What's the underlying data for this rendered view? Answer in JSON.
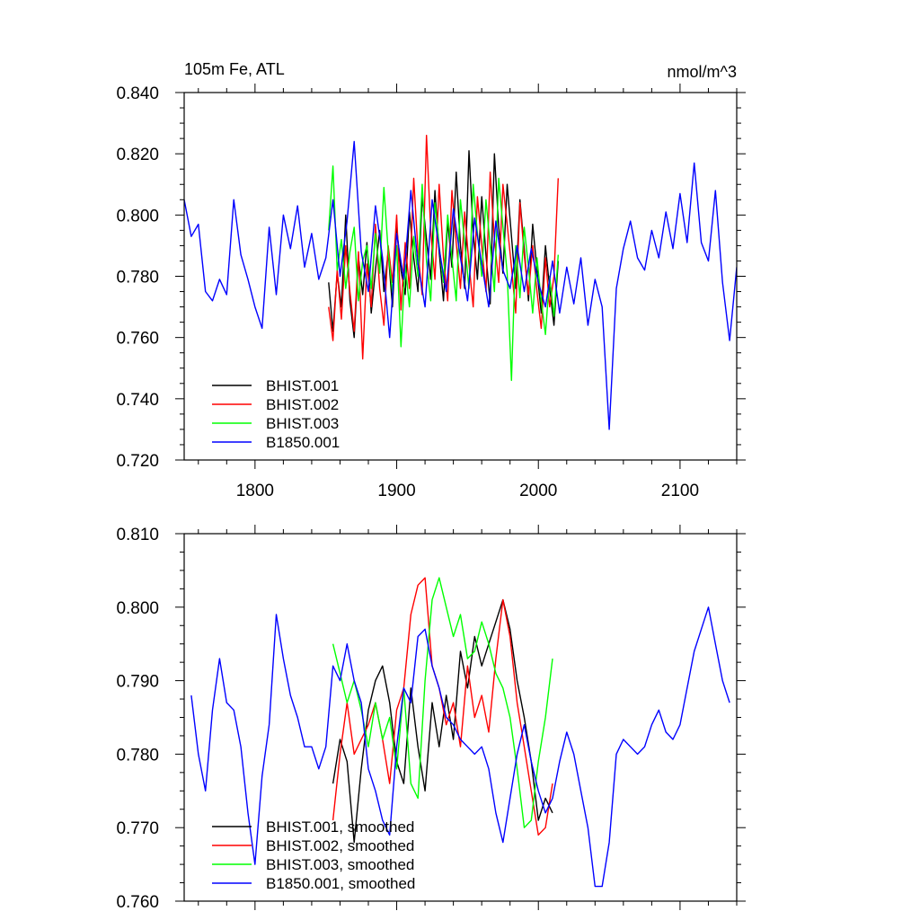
{
  "chart_data": [
    {
      "type": "line",
      "title": "105m Fe, ATL",
      "units": "nmol/m^3",
      "xlim": [
        1750,
        2140
      ],
      "ylim": [
        0.72,
        0.84
      ],
      "x_ticks": [
        1800,
        1900,
        2000,
        2100
      ],
      "y_ticks": [
        0.72,
        0.74,
        0.76,
        0.78,
        0.8,
        0.82,
        0.84
      ],
      "x_tick_labels": [
        "1800",
        "1900",
        "2000",
        "2100"
      ],
      "y_tick_labels": [
        "0.720",
        "0.740",
        "0.760",
        "0.780",
        "0.800",
        "0.820",
        "0.840"
      ],
      "legend_position": "bottom-left",
      "series": [
        {
          "name": "BHIST.001",
          "color": "#000000",
          "x": [
            1852,
            1855,
            1858,
            1861,
            1864,
            1867,
            1870,
            1873,
            1876,
            1879,
            1882,
            1885,
            1888,
            1891,
            1894,
            1897,
            1900,
            1903,
            1906,
            1909,
            1912,
            1915,
            1918,
            1921,
            1924,
            1927,
            1930,
            1933,
            1936,
            1939,
            1942,
            1945,
            1948,
            1951,
            1954,
            1957,
            1960,
            1963,
            1966,
            1969,
            1972,
            1975,
            1978,
            1981,
            1984,
            1987,
            1990,
            1993,
            1996,
            1999,
            2002,
            2005,
            2008,
            2011,
            2014
          ],
          "values": [
            0.778,
            0.762,
            0.781,
            0.77,
            0.8,
            0.772,
            0.76,
            0.786,
            0.774,
            0.791,
            0.768,
            0.782,
            0.795,
            0.775,
            0.788,
            0.77,
            0.796,
            0.782,
            0.774,
            0.801,
            0.786,
            0.775,
            0.806,
            0.792,
            0.779,
            0.808,
            0.788,
            0.772,
            0.798,
            0.783,
            0.814,
            0.79,
            0.776,
            0.821,
            0.794,
            0.779,
            0.806,
            0.787,
            0.771,
            0.82,
            0.796,
            0.781,
            0.81,
            0.793,
            0.776,
            0.805,
            0.789,
            0.772,
            0.797,
            0.782,
            0.768,
            0.79,
            0.776,
            0.764,
            0.785
          ]
        },
        {
          "name": "BHIST.002",
          "color": "#ff0000",
          "x": [
            1852,
            1855,
            1858,
            1861,
            1864,
            1867,
            1870,
            1873,
            1876,
            1879,
            1882,
            1885,
            1888,
            1891,
            1894,
            1897,
            1900,
            1903,
            1906,
            1909,
            1912,
            1915,
            1918,
            1921,
            1924,
            1927,
            1930,
            1933,
            1936,
            1939,
            1942,
            1945,
            1948,
            1951,
            1954,
            1957,
            1960,
            1963,
            1966,
            1969,
            1972,
            1975,
            1978,
            1981,
            1984,
            1987,
            1990,
            1993,
            1996,
            1999,
            2002,
            2005,
            2008,
            2011,
            2014
          ],
          "values": [
            0.77,
            0.759,
            0.782,
            0.766,
            0.79,
            0.775,
            0.762,
            0.788,
            0.753,
            0.784,
            0.77,
            0.797,
            0.776,
            0.764,
            0.79,
            0.778,
            0.8,
            0.769,
            0.791,
            0.776,
            0.812,
            0.788,
            0.774,
            0.826,
            0.795,
            0.779,
            0.81,
            0.786,
            0.772,
            0.808,
            0.791,
            0.776,
            0.801,
            0.784,
            0.77,
            0.806,
            0.79,
            0.775,
            0.814,
            0.792,
            0.778,
            0.81,
            0.797,
            0.783,
            0.768,
            0.804,
            0.787,
            0.774,
            0.79,
            0.775,
            0.763,
            0.786,
            0.77,
            0.78,
            0.812
          ]
        },
        {
          "name": "BHIST.003",
          "color": "#00ff00",
          "x": [
            1852,
            1855,
            1858,
            1861,
            1864,
            1867,
            1870,
            1873,
            1876,
            1879,
            1882,
            1885,
            1888,
            1891,
            1894,
            1897,
            1900,
            1903,
            1906,
            1909,
            1912,
            1915,
            1918,
            1921,
            1924,
            1927,
            1930,
            1933,
            1936,
            1939,
            1942,
            1945,
            1948,
            1951,
            1954,
            1957,
            1960,
            1963,
            1966,
            1969,
            1972,
            1975,
            1978,
            1981,
            1984,
            1987,
            1990,
            1993,
            1996,
            1999,
            2002,
            2005,
            2008,
            2011,
            2014
          ],
          "values": [
            0.795,
            0.816,
            0.782,
            0.792,
            0.776,
            0.788,
            0.796,
            0.772,
            0.785,
            0.79,
            0.776,
            0.794,
            0.781,
            0.809,
            0.788,
            0.775,
            0.79,
            0.757,
            0.784,
            0.77,
            0.793,
            0.78,
            0.81,
            0.785,
            0.772,
            0.804,
            0.79,
            0.778,
            0.8,
            0.786,
            0.772,
            0.805,
            0.791,
            0.776,
            0.81,
            0.794,
            0.78,
            0.805,
            0.79,
            0.775,
            0.812,
            0.796,
            0.781,
            0.746,
            0.79,
            0.773,
            0.796,
            0.783,
            0.768,
            0.786,
            0.772,
            0.761,
            0.78,
            0.767,
            0.787
          ]
        },
        {
          "name": "B1850.001",
          "color": "#0000ff",
          "x": [
            1750,
            1755,
            1760,
            1765,
            1770,
            1775,
            1780,
            1785,
            1790,
            1795,
            1800,
            1805,
            1810,
            1815,
            1820,
            1825,
            1830,
            1835,
            1840,
            1845,
            1850,
            1855,
            1860,
            1865,
            1870,
            1875,
            1880,
            1885,
            1890,
            1895,
            1900,
            1905,
            1910,
            1915,
            1920,
            1925,
            1930,
            1935,
            1940,
            1945,
            1950,
            1955,
            1960,
            1965,
            1970,
            1975,
            1980,
            1985,
            1990,
            1995,
            2000,
            2005,
            2010,
            2015,
            2020,
            2025,
            2030,
            2035,
            2040,
            2045,
            2050,
            2055,
            2060,
            2065,
            2070,
            2075,
            2080,
            2085,
            2090,
            2095,
            2100,
            2105,
            2110,
            2115,
            2120,
            2125,
            2130,
            2135,
            2140
          ],
          "values": [
            0.805,
            0.793,
            0.797,
            0.775,
            0.772,
            0.779,
            0.774,
            0.805,
            0.787,
            0.779,
            0.77,
            0.763,
            0.796,
            0.774,
            0.8,
            0.789,
            0.803,
            0.783,
            0.794,
            0.779,
            0.786,
            0.805,
            0.78,
            0.798,
            0.824,
            0.788,
            0.775,
            0.803,
            0.786,
            0.76,
            0.794,
            0.779,
            0.808,
            0.784,
            0.77,
            0.805,
            0.789,
            0.775,
            0.802,
            0.786,
            0.772,
            0.799,
            0.784,
            0.77,
            0.798,
            0.782,
            0.776,
            0.79,
            0.775,
            0.789,
            0.778,
            0.77,
            0.785,
            0.768,
            0.783,
            0.771,
            0.786,
            0.764,
            0.779,
            0.77,
            0.73,
            0.776,
            0.789,
            0.798,
            0.786,
            0.782,
            0.795,
            0.786,
            0.801,
            0.789,
            0.807,
            0.791,
            0.817,
            0.791,
            0.785,
            0.808,
            0.778,
            0.759,
            0.783
          ]
        }
      ]
    },
    {
      "type": "line",
      "xlim": [
        1750,
        2140
      ],
      "ylim": [
        0.76,
        0.81
      ],
      "x_ticks": [
        1800,
        1900,
        2000,
        2100
      ],
      "y_ticks": [
        0.76,
        0.77,
        0.78,
        0.79,
        0.8,
        0.81
      ],
      "y_tick_labels": [
        "0.760",
        "0.770",
        "0.780",
        "0.790",
        "0.800",
        "0.810"
      ],
      "legend_position": "bottom-left",
      "series": [
        {
          "name": "BHIST.001, smoothed",
          "color": "#000000",
          "x": [
            1855,
            1860,
            1865,
            1870,
            1875,
            1880,
            1885,
            1890,
            1895,
            1900,
            1905,
            1910,
            1915,
            1920,
            1925,
            1930,
            1935,
            1940,
            1945,
            1950,
            1955,
            1960,
            1965,
            1970,
            1975,
            1980,
            1985,
            1990,
            1995,
            2000,
            2005,
            2010
          ],
          "values": [
            0.776,
            0.782,
            0.779,
            0.768,
            0.778,
            0.786,
            0.79,
            0.792,
            0.787,
            0.779,
            0.776,
            0.789,
            0.781,
            0.775,
            0.787,
            0.781,
            0.788,
            0.782,
            0.794,
            0.789,
            0.796,
            0.792,
            0.795,
            0.798,
            0.801,
            0.797,
            0.79,
            0.785,
            0.779,
            0.771,
            0.774,
            0.772
          ]
        },
        {
          "name": "BHIST.002, smoothed",
          "color": "#ff0000",
          "x": [
            1855,
            1860,
            1865,
            1870,
            1875,
            1880,
            1885,
            1890,
            1895,
            1900,
            1905,
            1910,
            1915,
            1920,
            1925,
            1930,
            1935,
            1940,
            1945,
            1950,
            1955,
            1960,
            1965,
            1970,
            1975,
            1980,
            1985,
            1990,
            1995,
            2000,
            2005,
            2010
          ],
          "values": [
            0.771,
            0.78,
            0.787,
            0.78,
            0.782,
            0.784,
            0.787,
            0.782,
            0.776,
            0.786,
            0.789,
            0.799,
            0.803,
            0.804,
            0.792,
            0.789,
            0.784,
            0.787,
            0.781,
            0.792,
            0.785,
            0.788,
            0.783,
            0.793,
            0.801,
            0.796,
            0.787,
            0.781,
            0.775,
            0.769,
            0.77,
            0.776
          ]
        },
        {
          "name": "BHIST.003, smoothed",
          "color": "#00ff00",
          "x": [
            1855,
            1860,
            1865,
            1870,
            1875,
            1880,
            1885,
            1890,
            1895,
            1900,
            1905,
            1910,
            1915,
            1920,
            1925,
            1930,
            1935,
            1940,
            1945,
            1950,
            1955,
            1960,
            1965,
            1970,
            1975,
            1980,
            1985,
            1990,
            1995,
            2000,
            2005,
            2010
          ],
          "values": [
            0.795,
            0.791,
            0.787,
            0.79,
            0.786,
            0.781,
            0.787,
            0.782,
            0.785,
            0.778,
            0.789,
            0.776,
            0.774,
            0.79,
            0.801,
            0.804,
            0.8,
            0.796,
            0.799,
            0.793,
            0.794,
            0.798,
            0.795,
            0.791,
            0.789,
            0.785,
            0.778,
            0.77,
            0.771,
            0.779,
            0.785,
            0.793
          ]
        },
        {
          "name": "B1850.001, smoothed",
          "color": "#0000ff",
          "x": [
            1755,
            1760,
            1765,
            1770,
            1775,
            1780,
            1785,
            1790,
            1795,
            1800,
            1805,
            1810,
            1815,
            1820,
            1825,
            1830,
            1835,
            1840,
            1845,
            1850,
            1855,
            1860,
            1865,
            1870,
            1875,
            1880,
            1885,
            1890,
            1895,
            1900,
            1905,
            1910,
            1915,
            1920,
            1925,
            1930,
            1935,
            1940,
            1945,
            1950,
            1955,
            1960,
            1965,
            1970,
            1975,
            1980,
            1985,
            1990,
            1995,
            2000,
            2005,
            2010,
            2015,
            2020,
            2025,
            2030,
            2035,
            2040,
            2045,
            2050,
            2055,
            2060,
            2065,
            2070,
            2075,
            2080,
            2085,
            2090,
            2095,
            2100,
            2105,
            2110,
            2115,
            2120,
            2125,
            2130,
            2135
          ],
          "values": [
            0.788,
            0.78,
            0.775,
            0.786,
            0.793,
            0.787,
            0.786,
            0.781,
            0.772,
            0.765,
            0.777,
            0.784,
            0.799,
            0.793,
            0.788,
            0.785,
            0.781,
            0.781,
            0.778,
            0.781,
            0.792,
            0.79,
            0.795,
            0.79,
            0.787,
            0.778,
            0.775,
            0.771,
            0.769,
            0.781,
            0.789,
            0.787,
            0.796,
            0.797,
            0.792,
            0.789,
            0.785,
            0.784,
            0.782,
            0.781,
            0.78,
            0.781,
            0.778,
            0.772,
            0.768,
            0.774,
            0.78,
            0.784,
            0.779,
            0.775,
            0.772,
            0.774,
            0.779,
            0.783,
            0.78,
            0.775,
            0.77,
            0.762,
            0.762,
            0.768,
            0.78,
            0.782,
            0.781,
            0.78,
            0.781,
            0.784,
            0.786,
            0.783,
            0.782,
            0.784,
            0.789,
            0.794,
            0.797,
            0.8,
            0.795,
            0.79,
            0.787
          ]
        }
      ]
    }
  ]
}
